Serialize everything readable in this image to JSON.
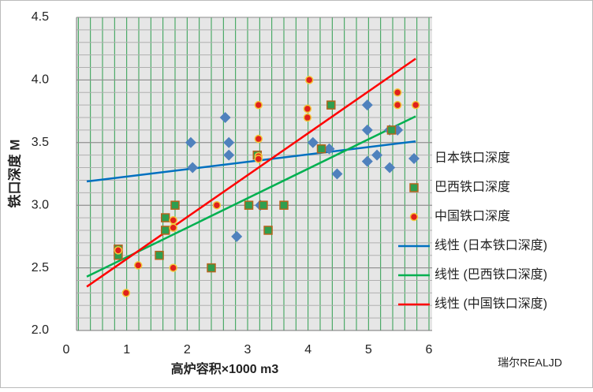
{
  "chart_data": {
    "type": "scatter",
    "x_label": "高炉容积×1000 m3",
    "y_label": "铁口深度 M",
    "watermark": "瑞尔REALJD",
    "xlim": [
      0,
      6
    ],
    "ylim": [
      2.0,
      4.5
    ],
    "xticks": [
      0,
      1,
      2,
      3,
      4,
      5,
      6
    ],
    "yticks": [
      {
        "value": 2.0,
        "label": "2.0"
      },
      2.5,
      {
        "value": 3.0,
        "label": "3.0"
      },
      3.5,
      {
        "value": 4.0,
        "label": "4.0"
      },
      4.5
    ],
    "grid": true,
    "minor_grid": {
      "x_step": 0.2,
      "y_step": 0.1,
      "x_color": "#2e9e4f",
      "y_color": "#b0b0b0"
    },
    "legend": "right",
    "series": [
      {
        "name": "日本铁口深度",
        "marker": "diamond",
        "color": "#4f81bd",
        "x": [
          2.06,
          2.09,
          2.63,
          2.69,
          2.69,
          2.82,
          3.21,
          4.08,
          4.35,
          4.48,
          4.98,
          4.98,
          4.98,
          5.14,
          5.35,
          5.35,
          5.48
        ],
        "values": [
          3.5,
          3.3,
          3.7,
          3.5,
          3.4,
          2.75,
          3.0,
          3.5,
          3.45,
          3.25,
          3.8,
          3.6,
          3.35,
          3.4,
          3.3,
          3.6,
          3.6
        ]
      },
      {
        "name": "巴西铁口深度",
        "marker": "square",
        "color": "#2e9e4f",
        "x": [
          0.86,
          0.86,
          1.54,
          1.64,
          1.64,
          1.8,
          2.4,
          3.02,
          3.16,
          3.26,
          3.34,
          3.6,
          4.22,
          4.38,
          5.38
        ],
        "values": [
          2.65,
          2.6,
          2.6,
          2.9,
          2.8,
          3.0,
          2.5,
          3.0,
          3.4,
          3.0,
          2.8,
          3.0,
          3.45,
          3.8,
          3.6
        ]
      },
      {
        "name": "中国铁口深度",
        "marker": "circle",
        "color": "#e0201b",
        "x": [
          0.86,
          0.99,
          1.19,
          1.77,
          1.77,
          1.77,
          2.49,
          3.18,
          3.18,
          3.18,
          3.18,
          4.02,
          3.99,
          3.99,
          5.48,
          5.48,
          5.78
        ],
        "values": [
          2.64,
          2.3,
          2.52,
          2.88,
          2.82,
          2.5,
          3.0,
          3.8,
          3.53,
          3.39,
          3.37,
          4.0,
          3.77,
          3.7,
          3.9,
          3.8,
          3.8
        ]
      }
    ],
    "trendlines": [
      {
        "name": "线性 (日本铁口深度)",
        "color": "#0070c0",
        "x": [
          0.34,
          5.78
        ],
        "values": [
          3.19,
          3.51
        ]
      },
      {
        "name": "线性 (巴西铁口深度)",
        "color": "#00b050",
        "x": [
          0.34,
          5.78
        ],
        "values": [
          2.43,
          3.71
        ]
      },
      {
        "name": "线性 (中国铁口深度)",
        "color": "#ff0000",
        "x": [
          0.34,
          5.78
        ],
        "values": [
          2.35,
          4.17
        ]
      }
    ]
  }
}
